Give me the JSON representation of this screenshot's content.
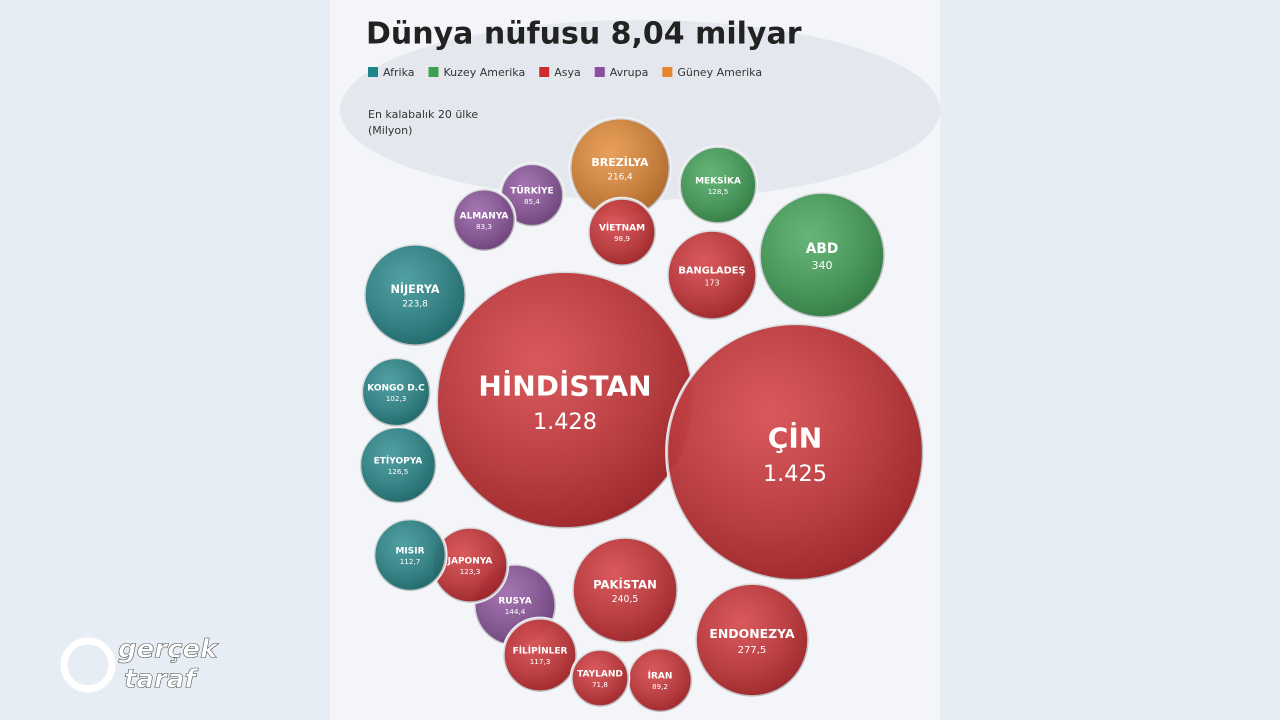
{
  "chart_data": {
    "type": "voronoi",
    "title": "Dünya nüfusu 8,04 milyar",
    "subtitle": [
      "En kalabalık 20 ülke",
      "(Milyon)"
    ],
    "watermark": [
      "gerçek",
      "taraf"
    ],
    "series": [
      {
        "name": "Afrika",
        "color": "#1f8588",
        "categories": [
          "NİJERYA",
          "KONGO D.C",
          "ETİYOPYA",
          "MISIR"
        ],
        "values": [
          223.8,
          102.3,
          126.5,
          112.7
        ],
        "value_labels": [
          "223,8",
          "102,3",
          "126,5",
          "112,7"
        ]
      },
      {
        "name": "Kuzey Amerika",
        "color": "#3aa152",
        "categories": [
          "MEKSİKA",
          "ABD"
        ],
        "values": [
          128.5,
          340
        ],
        "value_labels": [
          "128,5",
          "340"
        ]
      },
      {
        "name": "Asya",
        "color": "#cf2a2e",
        "categories": [
          "HİNDİSTAN",
          "ÇİN",
          "BANGLADEŞ",
          "VİETNAM",
          "JAPONYA",
          "PAKİSTAN",
          "ENDONEZYA",
          "FİLİPİNLER",
          "TAYLAND",
          "İRAN"
        ],
        "values": [
          1428,
          1425,
          173,
          98.9,
          123.3,
          240.5,
          277.5,
          117.3,
          71.8,
          89.2
        ],
        "value_labels": [
          "1.428",
          "1.425",
          "173",
          "98,9",
          "123,3",
          "240,5",
          "277,5",
          "117,3",
          "71,8",
          "89,2"
        ]
      },
      {
        "name": "Avrupa",
        "color": "#8a4e9c",
        "categories": [
          "ALMANYA",
          "TÜRKİYE",
          "RUSYA"
        ],
        "values": [
          83.3,
          85.4,
          144.4
        ],
        "value_labels": [
          "83,3",
          "85,4",
          "144,4"
        ]
      },
      {
        "name": "Güney Amerika",
        "color": "#e4852d",
        "categories": [
          "BREZİLYA"
        ],
        "values": [
          216.4
        ],
        "value_labels": [
          "216,4"
        ]
      }
    ]
  }
}
